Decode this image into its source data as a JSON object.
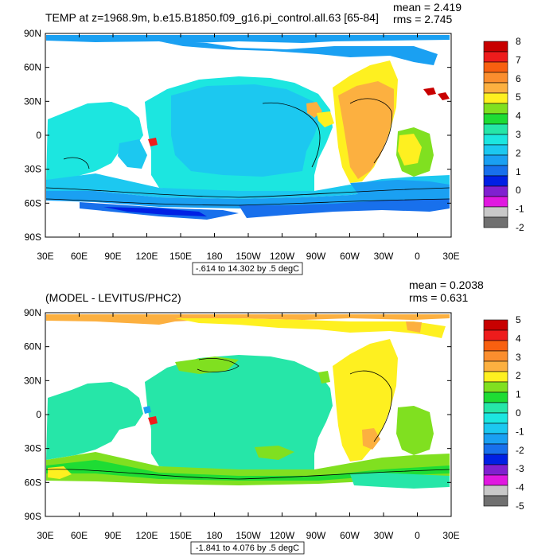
{
  "chart_data": [
    {
      "type": "heatmap",
      "title": "TEMP at z=1968.9m, b.e15.B1850.f09_g16.pi_control.all.63 [65-84]",
      "mean_label": "mean = 2.419",
      "rms_label": "rms = 2.745",
      "range_label": "-.614 to 14.302 by .5 degC",
      "x_ticks": [
        "30E",
        "60E",
        "90E",
        "120E",
        "150E",
        "180",
        "150W",
        "120W",
        "90W",
        "60W",
        "30W",
        "0",
        "30E"
      ],
      "y_ticks": [
        "90N",
        "60N",
        "30N",
        "0",
        "30S",
        "60S",
        "90S"
      ],
      "xlim": [
        30,
        390
      ],
      "ylim": [
        -90,
        90
      ],
      "colorbar_labels": [
        "8",
        "7",
        "6",
        "5",
        "4",
        "3",
        "2",
        "1",
        "0",
        "-1",
        "-2"
      ],
      "colorbar_colors": [
        "#c80000",
        "#ee1c1c",
        "#f86010",
        "#fb8e2e",
        "#fcb040",
        "#fef020",
        "#80e020",
        "#1edc34",
        "#26e6a8",
        "#1ce6e0",
        "#1cc8f0",
        "#1aa0f2",
        "#1870ec",
        "#0020e4",
        "#8020d0",
        "#e018e0",
        "#c8c8c8",
        "#707070"
      ]
    },
    {
      "type": "heatmap",
      "title": "(MODEL - LEVITUS/PHC2)",
      "mean_label": "mean = 0.2038",
      "rms_label": "rms = 0.631",
      "range_label": "-1.841 to 4.076 by .5 degC",
      "x_ticks": [
        "30E",
        "60E",
        "90E",
        "120E",
        "150E",
        "180",
        "150W",
        "120W",
        "90W",
        "60W",
        "30W",
        "0",
        "30E"
      ],
      "y_ticks": [
        "90N",
        "60N",
        "30N",
        "0",
        "30S",
        "60S",
        "90S"
      ],
      "xlim": [
        30,
        390
      ],
      "ylim": [
        -90,
        90
      ],
      "colorbar_labels": [
        "5",
        "4",
        "3",
        "2",
        "1",
        "0",
        "-1",
        "-2",
        "-3",
        "-4",
        "-5"
      ],
      "colorbar_colors": [
        "#c80000",
        "#ee1c1c",
        "#f86010",
        "#fb8e2e",
        "#fcb040",
        "#fef020",
        "#80e020",
        "#1edc34",
        "#26e6a8",
        "#1ce6e0",
        "#1cc8f0",
        "#1aa0f2",
        "#1870ec",
        "#0020e4",
        "#8020d0",
        "#e018e0",
        "#c8c8c8",
        "#707070"
      ]
    }
  ]
}
